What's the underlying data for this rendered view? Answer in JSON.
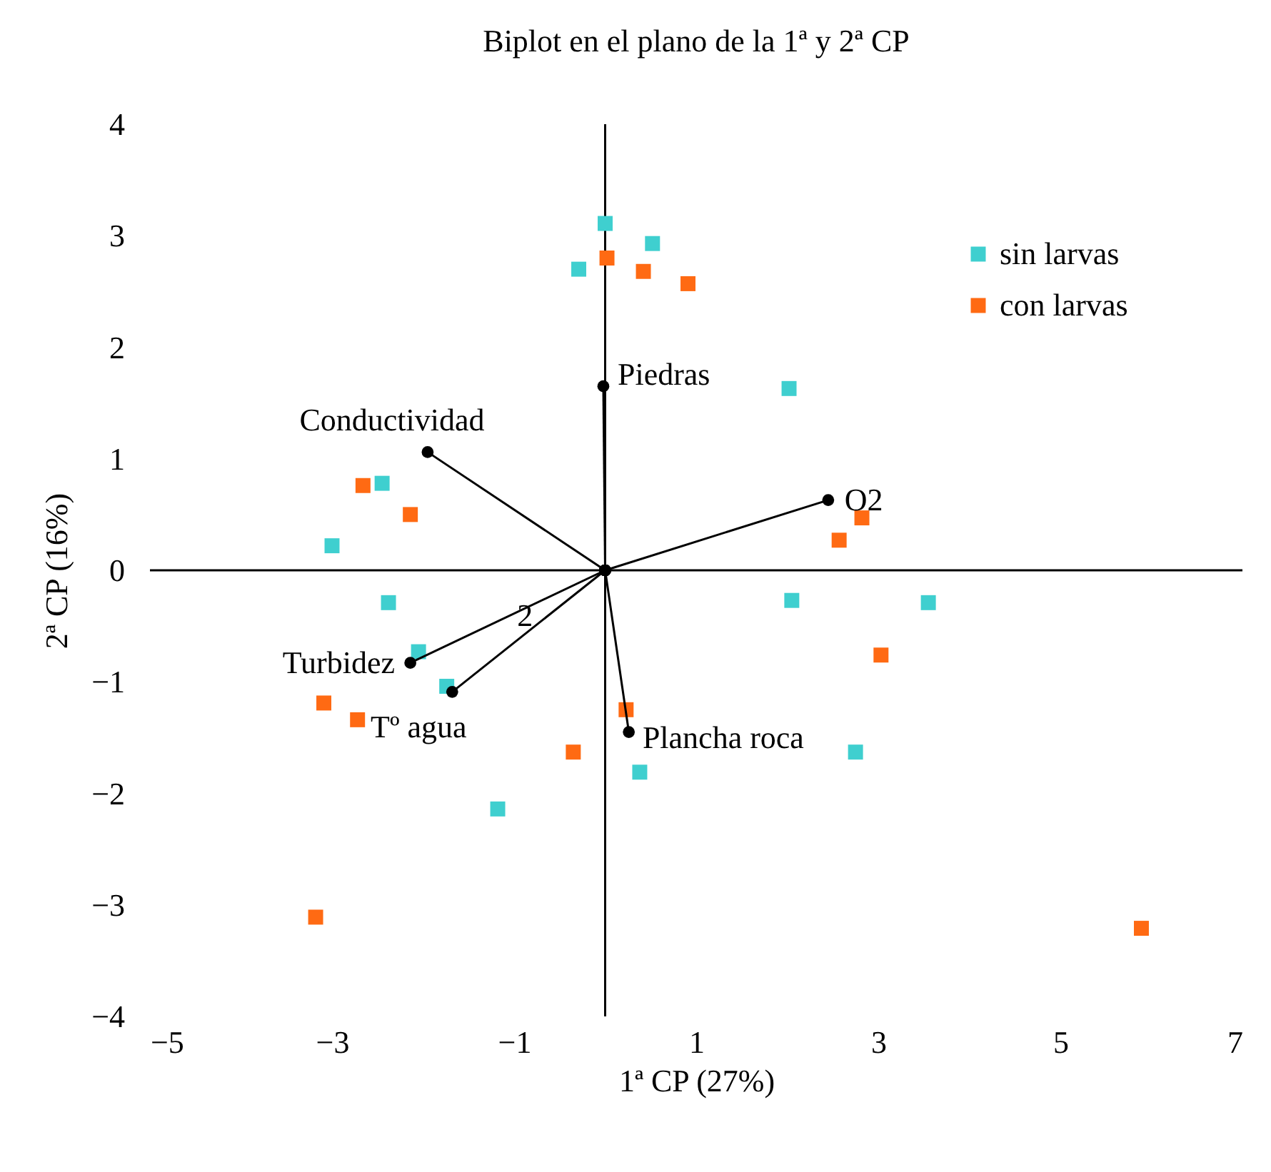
{
  "chart_data": {
    "type": "scatter",
    "title": "Biplot en el plano de la 1ª y 2ª CP",
    "xlabel": "1ª CP (27%)",
    "ylabel": "2ª CP (16%)",
    "xlim": [
      -5,
      7
    ],
    "xticks": [
      -5,
      -3,
      -1,
      1,
      3,
      5,
      7
    ],
    "ylim": [
      -4,
      4
    ],
    "yticks": [
      -4,
      -3,
      -2,
      -1,
      0,
      1,
      2,
      3,
      4
    ],
    "legend": "top right",
    "marker": "square",
    "annotations": [
      {
        "text": "2",
        "x": -0.88,
        "y": -0.41
      }
    ],
    "series": [
      {
        "name": "sin larvas",
        "color": "#3fcfcf",
        "x": [
          0.0,
          0.52,
          -0.29,
          2.02,
          -2.45,
          -3.0,
          -2.38,
          -2.05,
          -1.74,
          2.05,
          3.55,
          2.75,
          0.38,
          -1.18
        ],
        "values": [
          3.11,
          2.93,
          2.7,
          1.63,
          0.78,
          0.22,
          -0.29,
          -0.73,
          -1.04,
          -0.27,
          -0.29,
          -1.63,
          -1.81,
          -2.14
        ]
      },
      {
        "name": "con larvas",
        "color": "#ff6a13",
        "x": [
          0.02,
          0.42,
          0.91,
          -2.66,
          -2.14,
          2.82,
          2.57,
          3.03,
          0.23,
          -0.35,
          -3.09,
          -2.72,
          -3.18,
          5.89
        ],
        "values": [
          2.8,
          2.68,
          2.57,
          0.76,
          0.5,
          0.47,
          0.27,
          -0.76,
          -1.25,
          -1.63,
          -1.19,
          -1.34,
          -3.11,
          -3.21
        ]
      },
      {
        "name": "Piedras",
        "type": "line",
        "color": "#000000",
        "marker": "circle",
        "x": [
          0,
          -0.02
        ],
        "values": [
          0,
          1.65
        ]
      },
      {
        "name": "Conductividad",
        "type": "line",
        "color": "#000000",
        "marker": "circle",
        "x": [
          0,
          -1.95
        ],
        "values": [
          0,
          1.06
        ]
      },
      {
        "name": "O2",
        "type": "line",
        "color": "#000000",
        "marker": "circle",
        "x": [
          0,
          2.45
        ],
        "values": [
          0,
          0.63
        ]
      },
      {
        "name": "Turbidez",
        "type": "line",
        "color": "#000000",
        "marker": "circle",
        "x": [
          0,
          -2.14
        ],
        "values": [
          0,
          -0.83
        ]
      },
      {
        "name": "Tº agua",
        "type": "line",
        "color": "#000000",
        "marker": "circle",
        "x": [
          0,
          -1.68
        ],
        "values": [
          0,
          -1.09
        ]
      },
      {
        "name": "Plancha roca",
        "type": "line",
        "color": "#000000",
        "marker": "circle",
        "x": [
          0,
          0.26
        ],
        "values": [
          0,
          -1.45
        ]
      }
    ]
  }
}
